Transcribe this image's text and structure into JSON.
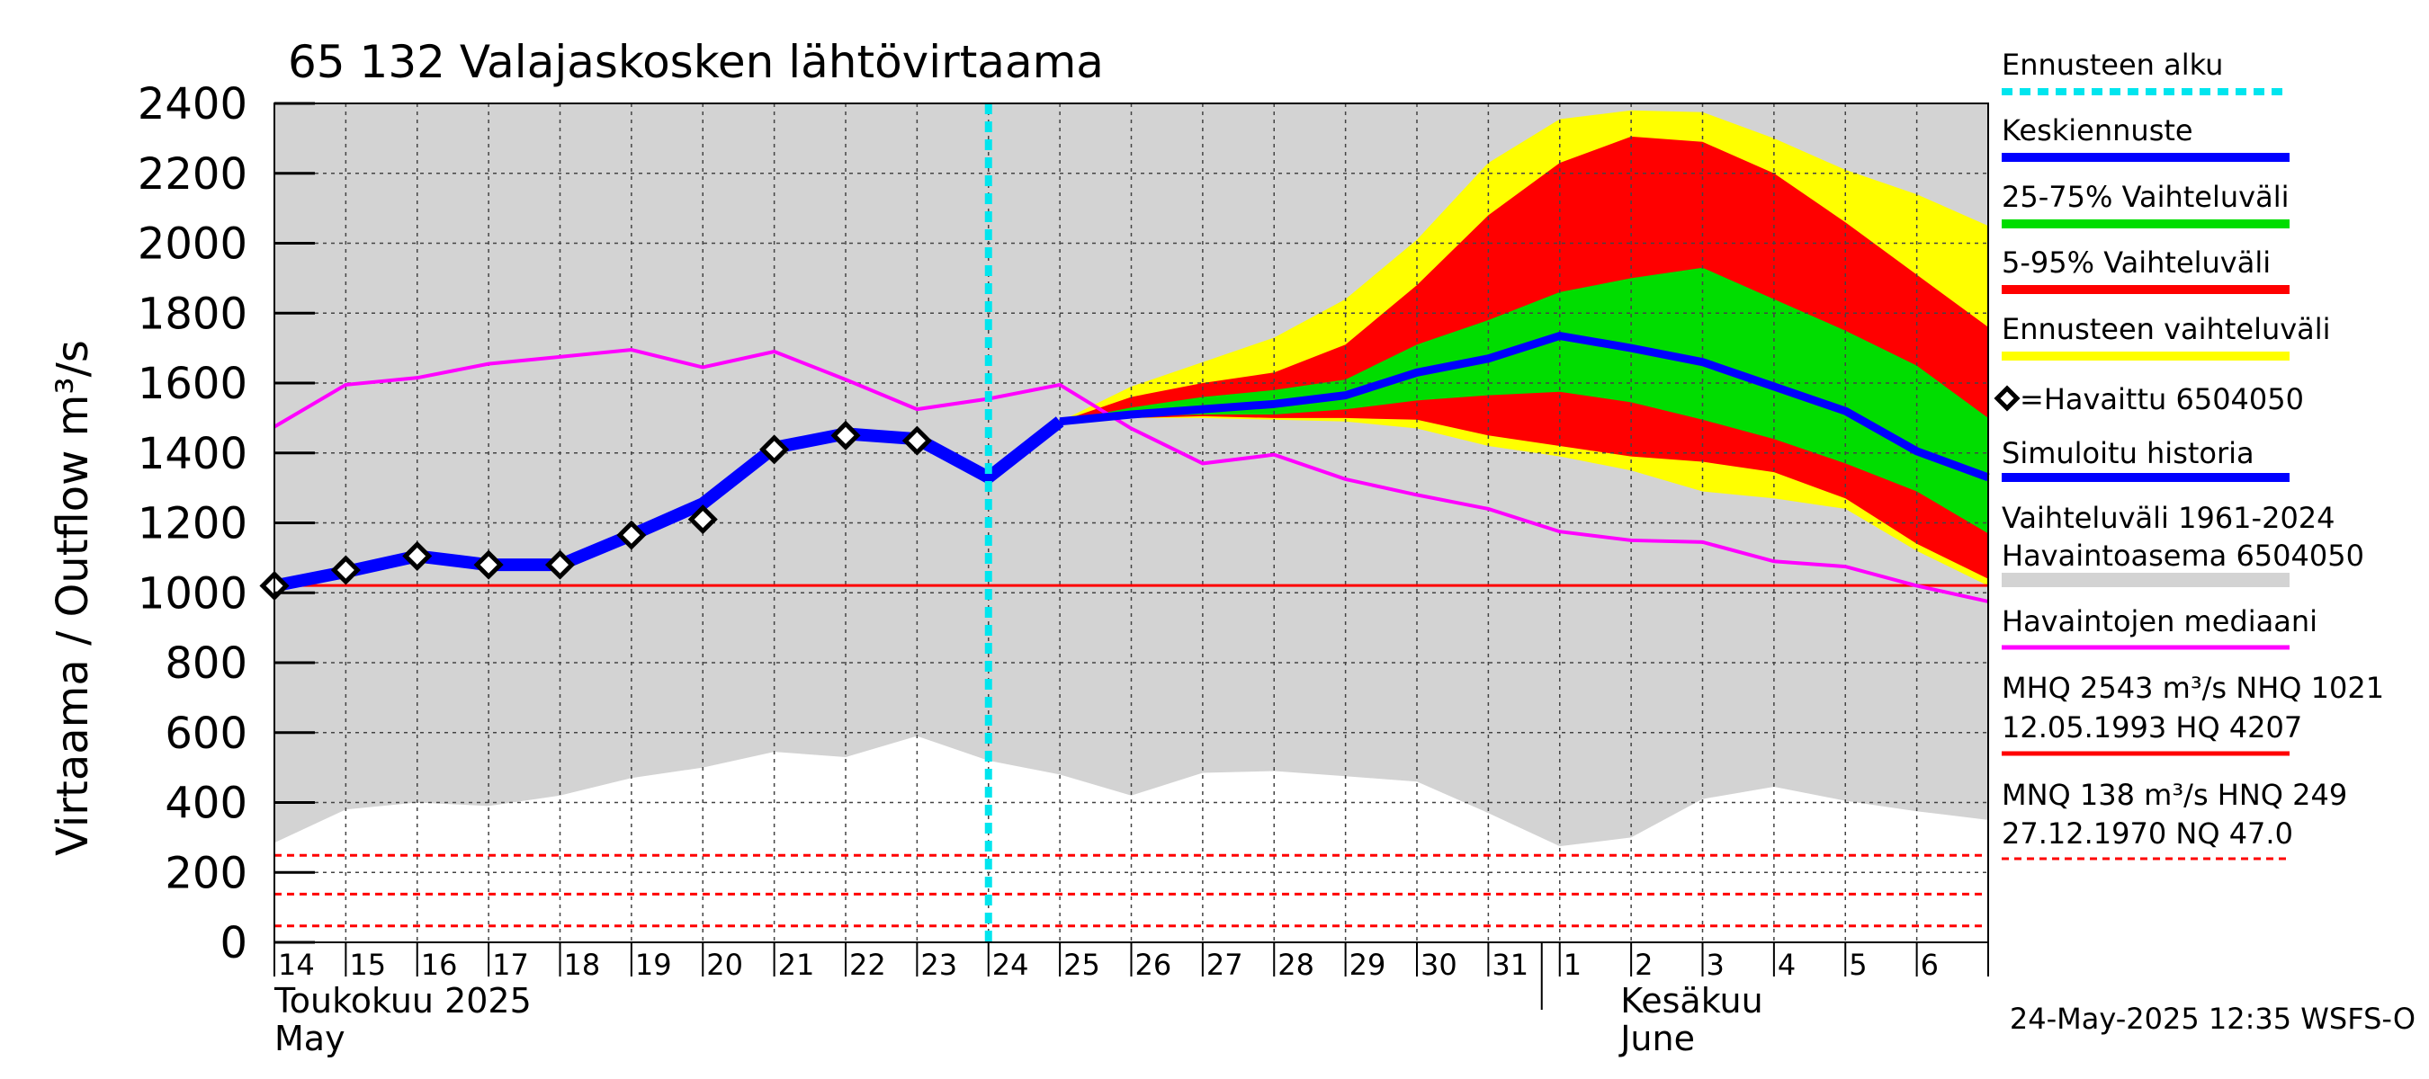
{
  "chart_data": {
    "type": "line",
    "title": "65 132 Valajaskosken lähtövirtaama",
    "ylabel": "Virtaama / Outflow    m³/s",
    "ylim": [
      0,
      2400
    ],
    "yticks": [
      0,
      200,
      400,
      600,
      800,
      1000,
      1200,
      1400,
      1600,
      1800,
      2000,
      2200,
      2400
    ],
    "grid": true,
    "legend_position": "right",
    "x_tick_labels": [
      "14",
      "15",
      "16",
      "17",
      "18",
      "19",
      "20",
      "21",
      "22",
      "23",
      "24",
      "25",
      "26",
      "27",
      "28",
      "29",
      "30",
      "31",
      "1",
      "2",
      "3",
      "4",
      "5",
      "6"
    ],
    "x_start_date": "2025-05-14",
    "x_end_date": "2025-06-07",
    "month_labels": {
      "may_fi": "Toukokuu  2025",
      "may_en": "May",
      "june_fi": "Kesäkuu",
      "june_en": "June"
    },
    "timestamp": "24-May-2025 12:35 WSFS-O",
    "forecast_start": "2025-05-24",
    "series": [
      {
        "name": "Simuloitu historia",
        "color": "#0000ff",
        "x": [
          "2025-05-14",
          "2025-05-15",
          "2025-05-16",
          "2025-05-17",
          "2025-05-18",
          "2025-05-19",
          "2025-05-20",
          "2025-05-21",
          "2025-05-22",
          "2025-05-23",
          "2025-05-24",
          "2025-05-25"
        ],
        "y": [
          1020,
          1060,
          1105,
          1080,
          1080,
          1165,
          1255,
          1415,
          1455,
          1440,
          1330,
          1490
        ]
      },
      {
        "name": "Keskiennuste",
        "color": "#0000ff",
        "x": [
          "2025-05-25",
          "2025-05-26",
          "2025-05-27",
          "2025-05-28",
          "2025-05-29",
          "2025-05-30",
          "2025-05-31",
          "2025-06-01",
          "2025-06-02",
          "2025-06-03",
          "2025-06-04",
          "2025-06-05",
          "2025-06-06",
          "2025-06-07"
        ],
        "y": [
          1490,
          1510,
          1525,
          1540,
          1565,
          1630,
          1670,
          1735,
          1700,
          1660,
          1590,
          1520,
          1405,
          1330
        ]
      },
      {
        "name": "Havaittu 6504050",
        "color": "#000000",
        "x": [
          "2025-05-14",
          "2025-05-15",
          "2025-05-16",
          "2025-05-17",
          "2025-05-18",
          "2025-05-19",
          "2025-05-20",
          "2025-05-21",
          "2025-05-22",
          "2025-05-23"
        ],
        "y": [
          1020,
          1065,
          1105,
          1080,
          1080,
          1165,
          1210,
          1410,
          1450,
          1435
        ]
      },
      {
        "name": "Havaintojen mediaani",
        "color": "#ff00ff",
        "x": [
          "2025-05-14",
          "2025-05-15",
          "2025-05-16",
          "2025-05-17",
          "2025-05-18",
          "2025-05-19",
          "2025-05-20",
          "2025-05-21",
          "2025-05-22",
          "2025-05-23",
          "2025-05-24",
          "2025-05-25",
          "2025-05-26",
          "2025-05-27",
          "2025-05-28",
          "2025-05-29",
          "2025-05-30",
          "2025-05-31",
          "2025-06-01",
          "2025-06-02",
          "2025-06-03",
          "2025-06-04",
          "2025-06-05",
          "2025-06-06",
          "2025-06-07"
        ],
        "y": [
          1475,
          1595,
          1615,
          1655,
          1675,
          1695,
          1645,
          1690,
          1610,
          1525,
          1555,
          1595,
          1470,
          1370,
          1395,
          1325,
          1280,
          1240,
          1175,
          1150,
          1145,
          1090,
          1075,
          1020,
          975
        ]
      }
    ],
    "bands": [
      {
        "name": "Ennusteen vaihteluväli",
        "color": "#ffff00",
        "x": [
          "2025-05-25",
          "2025-05-26",
          "2025-05-27",
          "2025-05-28",
          "2025-05-29",
          "2025-05-30",
          "2025-05-31",
          "2025-06-01",
          "2025-06-02",
          "2025-06-03",
          "2025-06-04",
          "2025-06-05",
          "2025-06-06",
          "2025-06-07"
        ],
        "upper": [
          1490,
          1590,
          1660,
          1730,
          1840,
          2010,
          2230,
          2355,
          2380,
          2375,
          2300,
          2210,
          2140,
          2050
        ],
        "lower": [
          1490,
          1500,
          1500,
          1495,
          1490,
          1470,
          1420,
          1390,
          1350,
          1290,
          1270,
          1240,
          1120,
          1020
        ]
      },
      {
        "name": "5-95% Vaihteluväli",
        "color": "#ff0000",
        "x": [
          "2025-05-25",
          "2025-05-26",
          "2025-05-27",
          "2025-05-28",
          "2025-05-29",
          "2025-05-30",
          "2025-05-31",
          "2025-06-01",
          "2025-06-02",
          "2025-06-03",
          "2025-06-04",
          "2025-06-05",
          "2025-06-06",
          "2025-06-07"
        ],
        "upper": [
          1490,
          1560,
          1600,
          1630,
          1710,
          1880,
          2080,
          2230,
          2305,
          2290,
          2200,
          2060,
          1910,
          1760
        ],
        "lower": [
          1490,
          1500,
          1505,
          1500,
          1500,
          1495,
          1450,
          1420,
          1390,
          1375,
          1345,
          1270,
          1140,
          1040
        ]
      },
      {
        "name": "25-75% Vaihteluväli",
        "color": "#00dd00",
        "x": [
          "2025-05-25",
          "2025-05-26",
          "2025-05-27",
          "2025-05-28",
          "2025-05-29",
          "2025-05-30",
          "2025-05-31",
          "2025-06-01",
          "2025-06-02",
          "2025-06-03",
          "2025-06-04",
          "2025-06-05",
          "2025-06-06",
          "2025-06-07"
        ],
        "upper": [
          1490,
          1530,
          1560,
          1580,
          1610,
          1710,
          1780,
          1860,
          1900,
          1930,
          1840,
          1750,
          1650,
          1500
        ],
        "lower": [
          1490,
          1505,
          1510,
          1510,
          1525,
          1550,
          1565,
          1575,
          1545,
          1495,
          1440,
          1370,
          1290,
          1170
        ]
      },
      {
        "name": "Vaihteluväli 1961-2024 Havaintoasema 6504050",
        "color": "#d3d3d3",
        "x": [
          "2025-05-14",
          "2025-05-15",
          "2025-05-16",
          "2025-05-17",
          "2025-05-18",
          "2025-05-19",
          "2025-05-20",
          "2025-05-21",
          "2025-05-22",
          "2025-05-23",
          "2025-05-24",
          "2025-05-25",
          "2025-05-26",
          "2025-05-27",
          "2025-05-28",
          "2025-05-29",
          "2025-05-30",
          "2025-05-31",
          "2025-06-01",
          "2025-06-02",
          "2025-06-03",
          "2025-06-04",
          "2025-06-05",
          "2025-06-06",
          "2025-06-07"
        ],
        "upper": [
          2400,
          2400,
          2400,
          2400,
          2400,
          2400,
          2400,
          2400,
          2400,
          2400,
          2400,
          2400,
          2400,
          2400,
          2400,
          2400,
          2400,
          2400,
          2400,
          2400,
          2400,
          2400,
          2400,
          2400,
          2400
        ],
        "lower": [
          285,
          380,
          400,
          390,
          420,
          470,
          500,
          545,
          530,
          590,
          520,
          480,
          420,
          485,
          490,
          475,
          460,
          370,
          275,
          300,
          410,
          445,
          405,
          375,
          350
        ]
      }
    ],
    "reference_lines": [
      {
        "name": "NHQ",
        "value": 1021,
        "color": "#ff0000",
        "style": "solid"
      },
      {
        "name": "HNQ",
        "value": 249,
        "color": "#ff0000",
        "style": "dashed"
      },
      {
        "name": "MNQ",
        "value": 138,
        "color": "#ff0000",
        "style": "dashed"
      },
      {
        "name": "NQ",
        "value": 47.0,
        "color": "#ff0000",
        "style": "dashed"
      }
    ],
    "legend": [
      {
        "label": "Ennusteen alku",
        "color": "#00e5ee",
        "style": "dotted"
      },
      {
        "label": "Keskiennuste",
        "color": "#0000ff",
        "style": "thick"
      },
      {
        "label": "25-75% Vaihteluväli",
        "color": "#00dd00",
        "style": "thick"
      },
      {
        "label": "5-95% Vaihteluväli",
        "color": "#ff0000",
        "style": "thick"
      },
      {
        "label": "Ennusteen vaihteluväli",
        "color": "#ffff00",
        "style": "thick"
      },
      {
        "label": "=Havaittu 6504050",
        "color": "#000000",
        "style": "marker"
      },
      {
        "label": "Simuloitu historia",
        "color": "#0000ff",
        "style": "thick"
      },
      {
        "label": "Vaihteluväli 1961-2024",
        "label2": " Havaintoasema 6504050",
        "color": "#d3d3d3",
        "style": "band"
      },
      {
        "label": "Havaintojen mediaani",
        "color": "#ff00ff",
        "style": "line"
      },
      {
        "label": "MHQ 2543 m³/s NHQ 1021",
        "label2": "12.05.1993 HQ 4207",
        "color": "#ff0000",
        "style": "line"
      },
      {
        "label": "MNQ  138 m³/s HNQ  249",
        "label2": "27.12.1970 NQ 47.0",
        "color": "#ff0000",
        "style": "dashed"
      }
    ]
  }
}
